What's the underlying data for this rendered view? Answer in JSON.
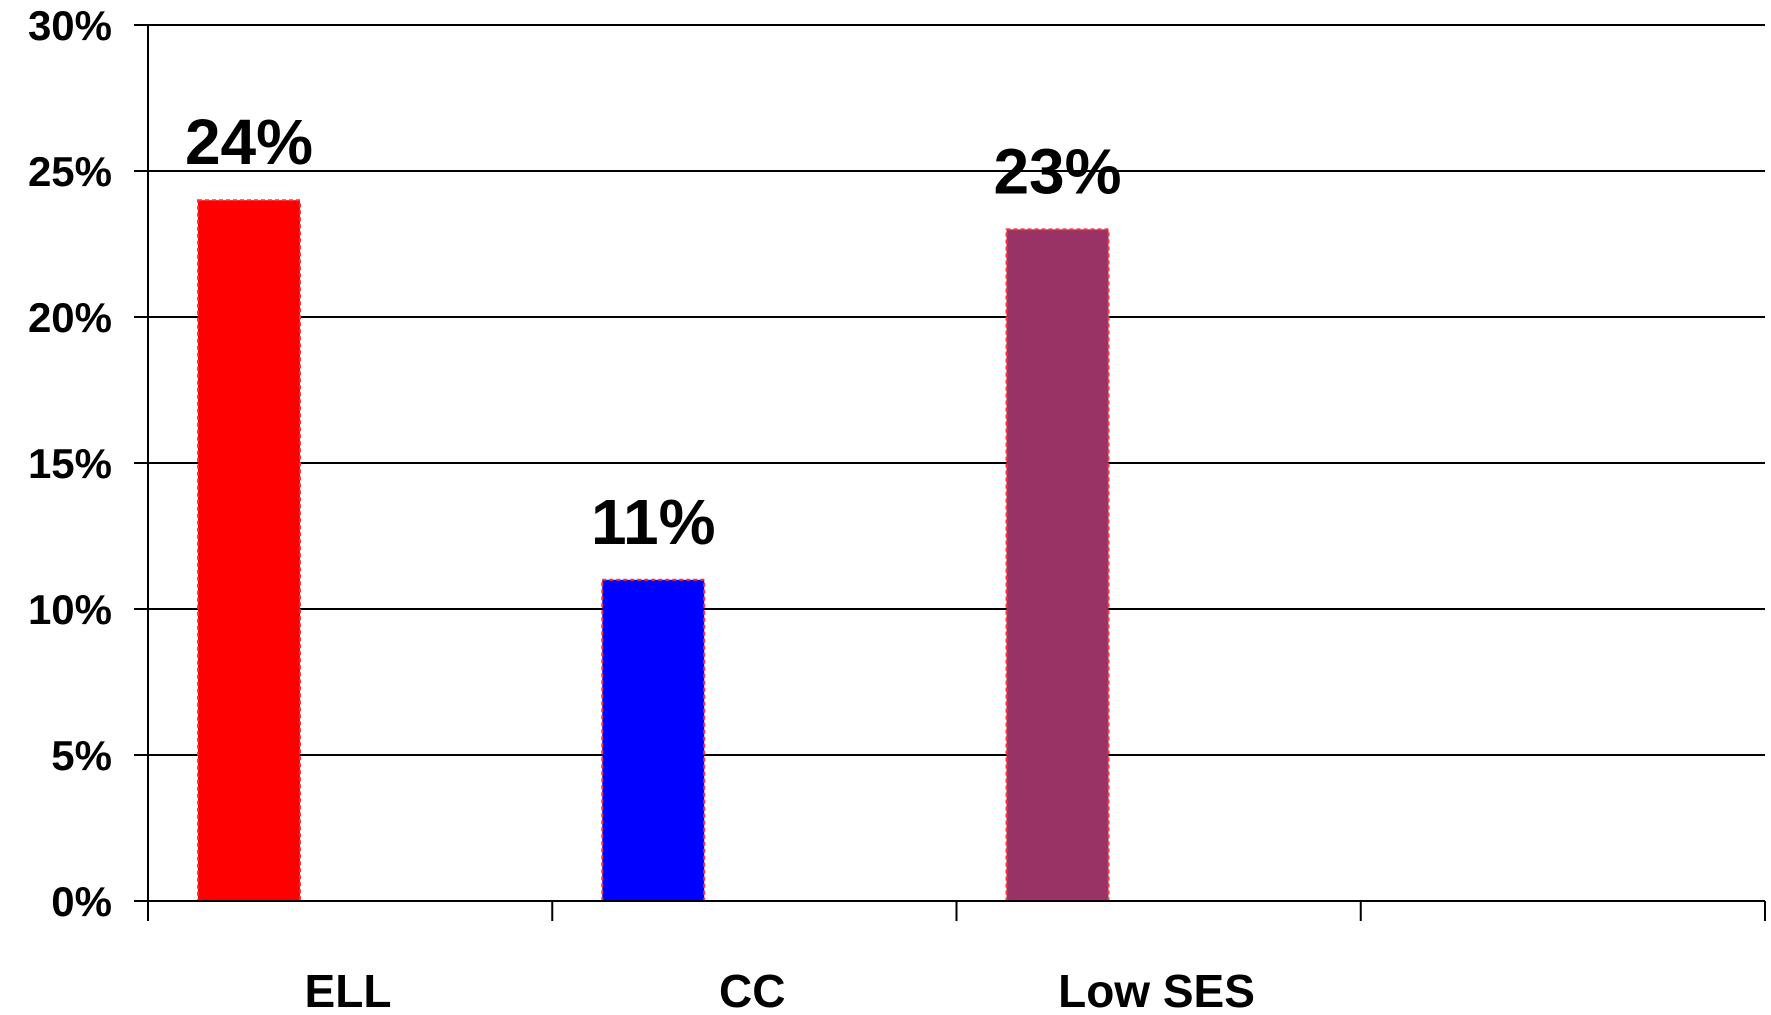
{
  "chart_data": {
    "type": "bar",
    "categories": [
      "ELL",
      "CC",
      "Low SES",
      ""
    ],
    "values": [
      24,
      11,
      23,
      null
    ],
    "data_labels": [
      "24%",
      "11%",
      "23%",
      ""
    ],
    "colors": [
      "#ff0000",
      "#0000ff",
      "#993366",
      "#ffffff"
    ],
    "bar_border_color": "#ff3333",
    "yticks": [
      0,
      5,
      10,
      15,
      20,
      25,
      30
    ],
    "ytick_labels": [
      "0%",
      "5%",
      "10%",
      "15%",
      "20%",
      "25%",
      "30%"
    ],
    "ylim": [
      0,
      30
    ],
    "grid": true,
    "legend": "none"
  }
}
